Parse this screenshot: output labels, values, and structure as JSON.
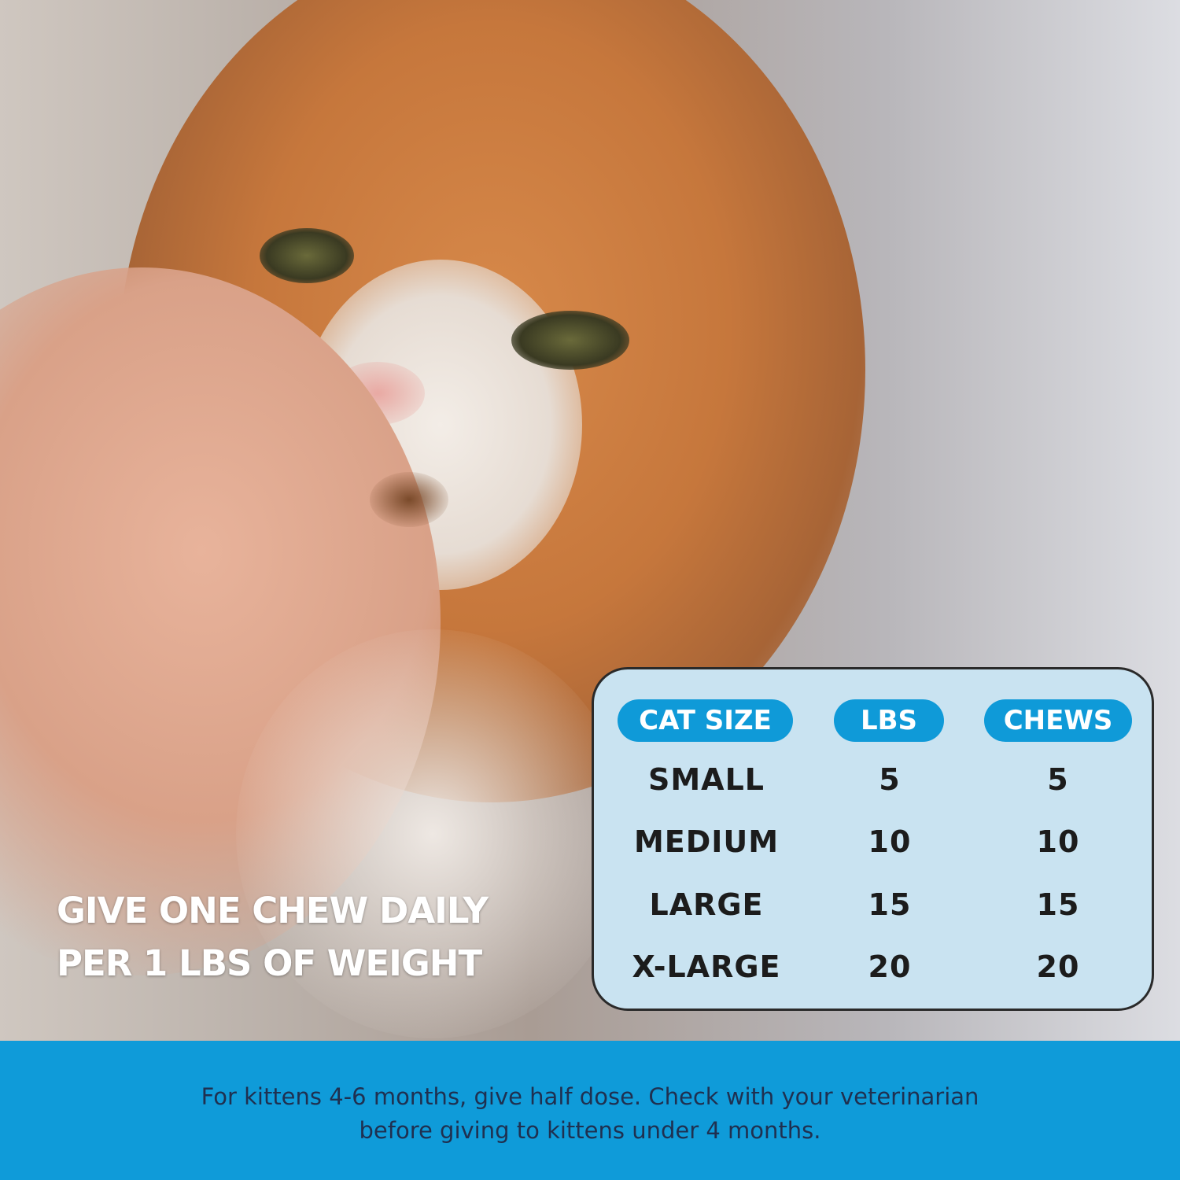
{
  "headline": {
    "line1": "GIVE ONE CHEW DAILY",
    "line2": "PER 1 LBS OF WEIGHT"
  },
  "dosage_table": {
    "headers": [
      "CAT SIZE",
      "LBS",
      "CHEWS"
    ],
    "rows": [
      [
        "SMALL",
        "5",
        "5"
      ],
      [
        "MEDIUM",
        "10",
        "10"
      ],
      [
        "LARGE",
        "15",
        "15"
      ],
      [
        "X-LARGE",
        "20",
        "20"
      ]
    ]
  },
  "footer": {
    "line1": "For kittens 4-6 months, give half dose. Check with your veterinarian",
    "line2": "before giving to kittens under 4 months."
  },
  "colors": {
    "accent": "#0f9bd9",
    "table_bg": "#c9e3f1"
  }
}
